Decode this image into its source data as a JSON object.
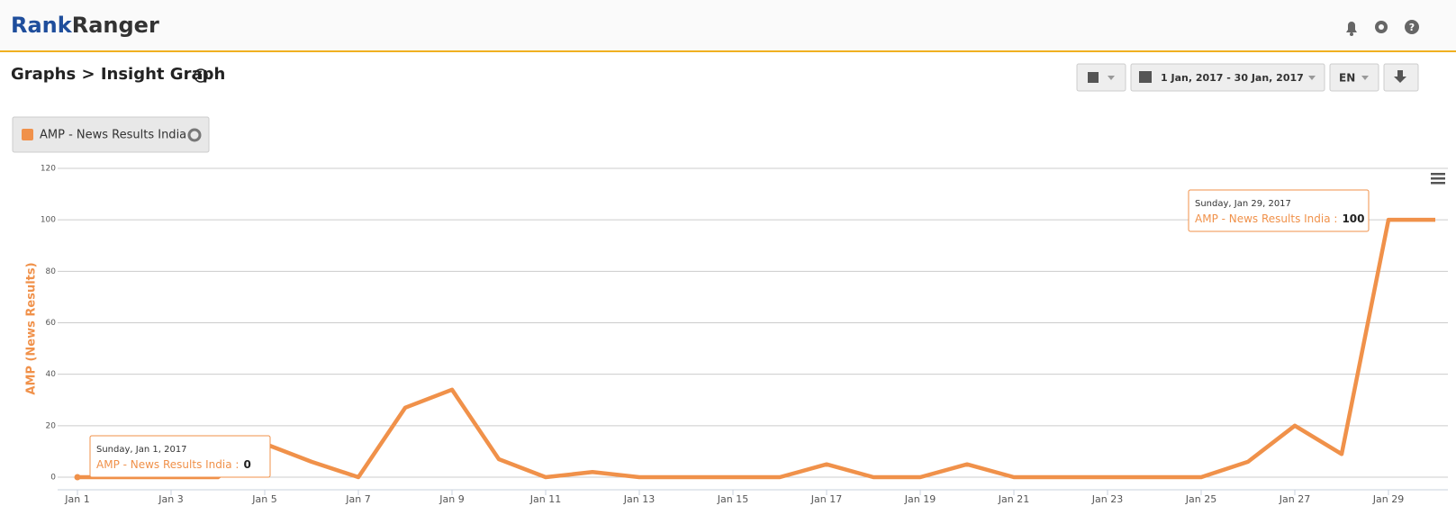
{
  "header": {
    "logo_left": "Rank",
    "logo_right": "Ranger",
    "breadcrumb": "Graphs > Insight Graph",
    "date_range": "1 Jan, 2017 - 30 Jan, 2017",
    "language": "EN"
  },
  "chart_data": {
    "type": "line",
    "y_label": "AMP (News Results)",
    "categories": [
      "Jan 1",
      null,
      "Jan 3",
      null,
      "Jan 5",
      null,
      "Jan 7",
      null,
      "Jan 9",
      null,
      "Jan 11",
      null,
      "Jan 13",
      null,
      "Jan 15",
      null,
      "Jan 17",
      null,
      "Jan 19",
      null,
      "Jan 21",
      null,
      "Jan 23",
      null,
      "Jan 25",
      null,
      "Jan 27",
      null,
      "Jan 29",
      null
    ],
    "series": [
      {
        "name": "AMP - News Results India",
        "color": "#f0914a",
        "values": [
          0,
          0,
          0,
          0,
          13,
          6,
          0,
          27,
          34,
          7,
          0,
          2,
          0,
          0,
          0,
          0,
          5,
          0,
          0,
          5,
          0,
          0,
          0,
          0,
          0,
          6,
          20,
          9,
          100,
          100
        ]
      }
    ],
    "ylim": [
      0,
      120
    ],
    "yticks": [
      0,
      20,
      40,
      60,
      80,
      100,
      120
    ],
    "grid": true,
    "annotations": [
      {
        "date": "Sunday, Jan 1, 2017",
        "label": "AMP - News Results India :",
        "value": 0
      },
      {
        "date": "Sunday, Jan 29, 2017",
        "label": "AMP - News Results India :",
        "value": 100
      }
    ]
  }
}
